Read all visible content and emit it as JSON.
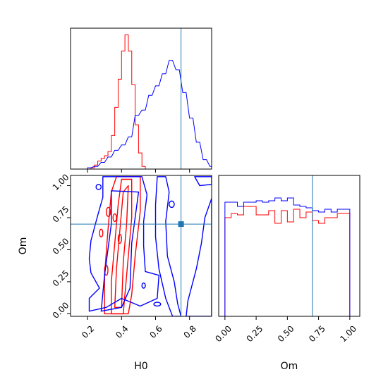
{
  "colors": {
    "series_a": "#ff0000",
    "series_b": "#0000ff",
    "truth": "#1f77b4"
  },
  "chart_data": [
    {
      "panel": "H0 marginal",
      "type": "histogram",
      "xlim": [
        0.1,
        0.93
      ],
      "truth_x": 0.75,
      "bin_width": 0.02,
      "series": [
        {
          "color": "#ff0000",
          "bin_starts": [
            0.2,
            0.22,
            0.24,
            0.26,
            0.28,
            0.3,
            0.32,
            0.34,
            0.36,
            0.38,
            0.4,
            0.42,
            0.44,
            0.46,
            0.48,
            0.5,
            0.52
          ],
          "heights": [
            0.0,
            0.01,
            0.03,
            0.06,
            0.08,
            0.1,
            0.13,
            0.25,
            0.46,
            0.67,
            0.88,
            1.0,
            0.88,
            0.63,
            0.33,
            0.12,
            0.02
          ]
        },
        {
          "color": "#0000ff",
          "bin_starts": [
            0.2,
            0.24,
            0.28,
            0.32,
            0.36,
            0.4,
            0.44,
            0.48,
            0.52,
            0.56,
            0.6,
            0.64,
            0.68,
            0.72,
            0.76,
            0.8,
            0.84,
            0.88,
            0.92
          ],
          "heights": [
            0.01,
            0.02,
            0.05,
            0.09,
            0.14,
            0.18,
            0.24,
            0.4,
            0.44,
            0.55,
            0.62,
            0.71,
            0.81,
            0.74,
            0.57,
            0.38,
            0.2,
            0.07,
            0.02
          ]
        }
      ]
    },
    {
      "panel": "H0 vs Om",
      "type": "contour",
      "xlabel": "H0",
      "ylabel": "Om",
      "xlim": [
        0.1,
        0.93
      ],
      "ylim": [
        -0.02,
        1.08
      ],
      "xticks": [
        "0.2",
        "0.4",
        "0.6",
        "0.8"
      ],
      "xtick_values": [
        0.2,
        0.4,
        0.6,
        0.8
      ],
      "yticks": [
        "0.00",
        "0.25",
        "0.50",
        "0.75",
        "1.00"
      ],
      "ytick_values": [
        0,
        0.25,
        0.5,
        0.75,
        1.0
      ],
      "truth": {
        "x": 0.75,
        "y": 0.7
      },
      "series": [
        {
          "color": "#ff0000",
          "contours": [
            [
              [
                0.34,
                0.0
              ],
              [
                0.34,
                0.25
              ],
              [
                0.36,
                0.55
              ],
              [
                0.38,
                0.85
              ],
              [
                0.4,
                1.05
              ],
              [
                0.46,
                1.05
              ],
              [
                0.46,
                0.75
              ],
              [
                0.44,
                0.45
              ],
              [
                0.42,
                0.15
              ],
              [
                0.41,
                0.0
              ]
            ],
            [
              [
                0.36,
                0.05
              ],
              [
                0.37,
                0.35
              ],
              [
                0.39,
                0.65
              ],
              [
                0.41,
                0.95
              ],
              [
                0.44,
                1.0
              ],
              [
                0.43,
                0.7
              ],
              [
                0.41,
                0.4
              ],
              [
                0.4,
                0.05
              ]
            ],
            [
              [
                0.3,
                0.0
              ],
              [
                0.3,
                0.3
              ],
              [
                0.32,
                0.65
              ],
              [
                0.34,
                0.95
              ],
              [
                0.37,
                1.07
              ],
              [
                0.51,
                1.07
              ],
              [
                0.51,
                0.8
              ],
              [
                0.48,
                0.45
              ],
              [
                0.46,
                0.15
              ],
              [
                0.44,
                0.0
              ]
            ]
          ],
          "islands": [
            [
              [
                0.31,
                0.76
              ],
              [
                0.335,
                0.83
              ]
            ],
            [
              [
                0.27,
                0.6
              ],
              [
                0.29,
                0.66
              ]
            ],
            [
              [
                0.3,
                0.3
              ],
              [
                0.32,
                0.38
              ]
            ],
            [
              [
                0.38,
                0.55
              ],
              [
                0.4,
                0.62
              ]
            ],
            [
              [
                0.35,
                0.72
              ],
              [
                0.37,
                0.78
              ]
            ]
          ]
        },
        {
          "color": "#0000ff",
          "contours": [
            [
              [
                0.21,
                0.43
              ],
              [
                0.22,
                0.57
              ],
              [
                0.26,
                0.77
              ],
              [
                0.29,
                0.91
              ],
              [
                0.29,
                1.07
              ],
              [
                0.52,
                1.07
              ],
              [
                0.55,
                0.93
              ],
              [
                0.53,
                0.72
              ],
              [
                0.53,
                0.53
              ],
              [
                0.54,
                0.33
              ],
              [
                0.62,
                0.3
              ],
              [
                0.61,
                0.12
              ],
              [
                0.51,
                0.06
              ],
              [
                0.4,
                0.12
              ],
              [
                0.31,
                0.05
              ],
              [
                0.21,
                0.02
              ],
              [
                0.21,
                0.12
              ],
              [
                0.27,
                0.2
              ],
              [
                0.22,
                0.32
              ]
            ],
            [
              [
                0.28,
                0.02
              ],
              [
                0.3,
                0.3
              ],
              [
                0.34,
                0.7
              ],
              [
                0.34,
                0.96
              ],
              [
                0.5,
                0.95
              ],
              [
                0.46,
                0.55
              ],
              [
                0.45,
                0.2
              ],
              [
                0.4,
                0.05
              ]
            ],
            [
              [
                0.61,
                1.07
              ],
              [
                0.66,
                1.07
              ],
              [
                0.68,
                0.95
              ],
              [
                0.66,
                0.72
              ],
              [
                0.67,
                0.45
              ],
              [
                0.71,
                0.25
              ],
              [
                0.73,
                0.08
              ],
              [
                0.75,
                -0.02
              ],
              [
                0.7,
                -0.02
              ],
              [
                0.66,
                0.12
              ],
              [
                0.62,
                0.35
              ],
              [
                0.6,
                0.6
              ],
              [
                0.6,
                0.85
              ]
            ],
            [
              [
                0.83,
                1.07
              ],
              [
                0.93,
                1.07
              ],
              [
                0.93,
                1.01
              ],
              [
                0.86,
                1.0
              ]
            ],
            [
              [
                0.93,
                0.9
              ],
              [
                0.89,
                0.75
              ],
              [
                0.87,
                0.55
              ],
              [
                0.84,
                0.35
              ],
              [
                0.79,
                0.1
              ],
              [
                0.78,
                -0.02
              ],
              [
                0.93,
                -0.02
              ]
            ]
          ],
          "islands": [
            [
              [
                0.25,
                0.97
              ],
              [
                0.28,
                1.01
              ]
            ],
            [
              [
                0.68,
                0.83
              ],
              [
                0.71,
                0.88
              ]
            ],
            [
              [
                0.59,
                0.06
              ],
              [
                0.63,
                0.09
              ]
            ],
            [
              [
                0.52,
                0.2
              ],
              [
                0.54,
                0.24
              ]
            ]
          ]
        }
      ]
    },
    {
      "panel": "Om marginal",
      "type": "histogram",
      "xlabel": "Om",
      "xlim": [
        -0.05,
        1.08
      ],
      "xticks": [
        "0.00",
        "0.25",
        "0.50",
        "0.75",
        "1.00"
      ],
      "xtick_values": [
        0,
        0.25,
        0.5,
        0.75,
        1.0
      ],
      "truth_x": 0.7,
      "bin_width": 0.05,
      "series": [
        {
          "color": "#ff0000",
          "bin_starts": [
            0.0,
            0.05,
            0.1,
            0.15,
            0.2,
            0.25,
            0.3,
            0.35,
            0.4,
            0.45,
            0.5,
            0.55,
            0.6,
            0.65,
            0.7,
            0.75,
            0.8,
            0.85,
            0.9,
            0.95
          ],
          "heights": [
            0.7,
            0.73,
            0.72,
            0.78,
            0.78,
            0.72,
            0.72,
            0.75,
            0.66,
            0.75,
            0.67,
            0.76,
            0.7,
            0.74,
            0.68,
            0.66,
            0.7,
            0.7,
            0.73,
            0.73
          ]
        },
        {
          "color": "#0000ff",
          "bin_starts": [
            0.0,
            0.05,
            0.1,
            0.15,
            0.2,
            0.25,
            0.3,
            0.35,
            0.4,
            0.45,
            0.5,
            0.55,
            0.6,
            0.65,
            0.7,
            0.75,
            0.8,
            0.85,
            0.9,
            0.95
          ],
          "heights": [
            0.81,
            0.81,
            0.78,
            0.81,
            0.81,
            0.82,
            0.81,
            0.82,
            0.84,
            0.82,
            0.84,
            0.79,
            0.78,
            0.77,
            0.75,
            0.74,
            0.76,
            0.74,
            0.76,
            0.76
          ]
        }
      ]
    }
  ]
}
